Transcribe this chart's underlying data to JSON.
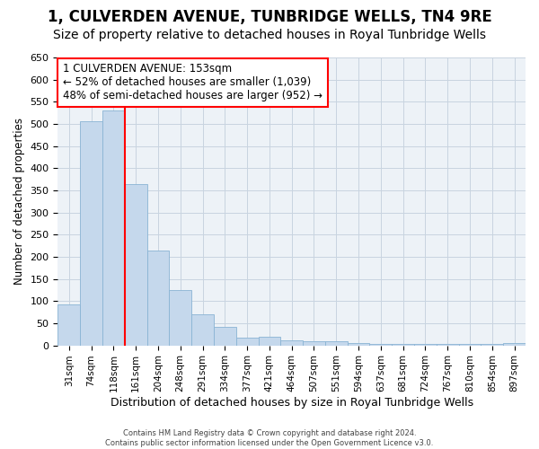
{
  "title": "1, CULVERDEN AVENUE, TUNBRIDGE WELLS, TN4 9RE",
  "subtitle": "Size of property relative to detached houses in Royal Tunbridge Wells",
  "xlabel": "Distribution of detached houses by size in Royal Tunbridge Wells",
  "ylabel": "Number of detached properties",
  "bar_color": "#c5d8ec",
  "bar_edge_color": "#8ab4d4",
  "categories": [
    "31sqm",
    "74sqm",
    "118sqm",
    "161sqm",
    "204sqm",
    "248sqm",
    "291sqm",
    "334sqm",
    "377sqm",
    "421sqm",
    "464sqm",
    "507sqm",
    "551sqm",
    "594sqm",
    "637sqm",
    "681sqm",
    "724sqm",
    "767sqm",
    "810sqm",
    "854sqm",
    "897sqm"
  ],
  "values": [
    92,
    507,
    530,
    365,
    215,
    125,
    70,
    42,
    18,
    20,
    12,
    10,
    10,
    5,
    4,
    4,
    4,
    3,
    4,
    3,
    5
  ],
  "red_line_index": 3,
  "annotation_title": "1 CULVERDEN AVENUE: 153sqm",
  "annotation_line2": "← 52% of detached houses are smaller (1,039)",
  "annotation_line3": "48% of semi-detached houses are larger (952) →",
  "ylim": [
    0,
    650
  ],
  "yticks": [
    0,
    50,
    100,
    150,
    200,
    250,
    300,
    350,
    400,
    450,
    500,
    550,
    600,
    650
  ],
  "footer_line1": "Contains HM Land Registry data © Crown copyright and database right 2024.",
  "footer_line2": "Contains public sector information licensed under the Open Government Licence v3.0.",
  "bg_color": "#edf2f7",
  "grid_color": "#c8d4e0",
  "title_fontsize": 12,
  "subtitle_fontsize": 10
}
